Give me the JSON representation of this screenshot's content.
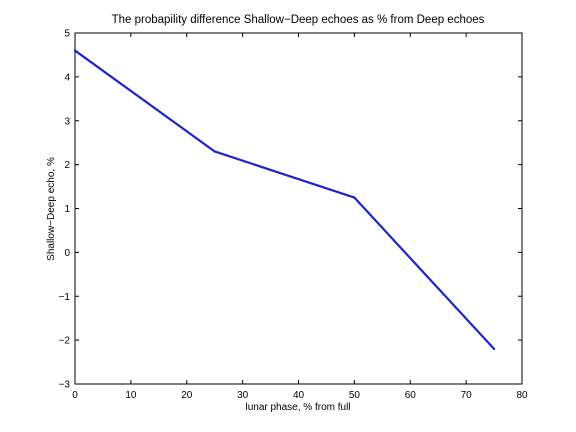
{
  "chart_data": {
    "type": "line",
    "title": "The probapility difference Shallow−Deep echoes as % from Deep echoes",
    "xlabel": "lunar phase, % from full",
    "ylabel": "Shallow−Deep echo, %",
    "xlim": [
      0,
      80
    ],
    "ylim": [
      -3,
      5
    ],
    "xticks": [
      0,
      10,
      20,
      30,
      40,
      50,
      60,
      70,
      80
    ],
    "yticks": [
      -3,
      -2,
      -1,
      0,
      1,
      2,
      3,
      4,
      5
    ],
    "xtick_labels": [
      "0",
      "10",
      "20",
      "30",
      "40",
      "50",
      "60",
      "70",
      "80"
    ],
    "ytick_labels": [
      "−3",
      "−2",
      "−1",
      "0",
      "1",
      "2",
      "3",
      "4",
      "5"
    ],
    "grid": false,
    "legend": "none",
    "series": [
      {
        "color": "#1f23c8",
        "x": [
          0,
          25,
          50,
          75
        ],
        "y": [
          4.6,
          2.3,
          1.25,
          -2.2
        ]
      }
    ]
  }
}
